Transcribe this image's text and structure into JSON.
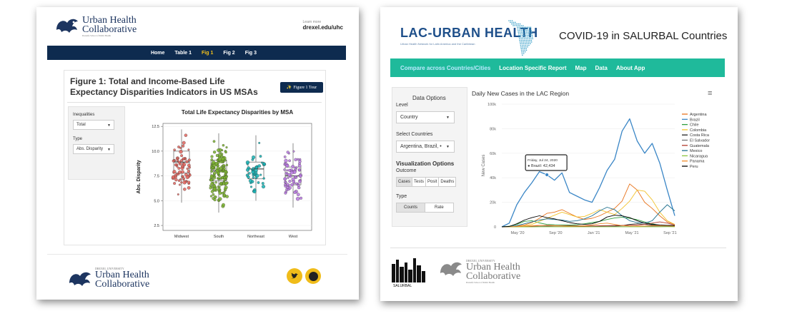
{
  "left": {
    "logo": {
      "line1": "Urban Health",
      "line2": "Collaborative",
      "tagline": "Dornsife School of Public Health"
    },
    "learn_more": "Learn more",
    "link": "drexel.edu/uhc",
    "nav": [
      "Home",
      "Table 1",
      "Fig 1",
      "Fig 2",
      "Fig 3"
    ],
    "nav_active": "Fig 1",
    "figure_title": "Figure 1: Total and Income-Based Life Expectancy Disparities Indicators in US MSAs",
    "tour_button": "Figure 1 Tour",
    "controls": {
      "inequalities_label": "Inequalities",
      "inequalities_value": "Total",
      "type_label": "Type",
      "type_value": "Abs. Disparity"
    },
    "footer_logo": {
      "small": "DREXEL UNIVERSITY",
      "line1": "Urban Health",
      "line2": "Collaborative"
    },
    "social": [
      "twitter-icon",
      "github-icon"
    ],
    "accent": "#0e2b4f",
    "highlight": "#f5c21b"
  },
  "right": {
    "logo_text": "LAC-URBAN HEALTH",
    "logo_sub": "Urban Health Network for Latin America and the Caribbean",
    "heading": "COVID-19 in SALURBAL Countries",
    "nav": [
      "Compare across Countries/Cities",
      "Location Specific Report",
      "Map",
      "Data",
      "About App"
    ],
    "nav_active": "Compare across Countries/Cities",
    "nav_color": "#1fba9b",
    "controls": {
      "data_options": "Data Options",
      "level_label": "Level",
      "level_value": "Country",
      "select_label": "Select Countries",
      "select_value": "Argentina, Brazil, •",
      "viz_options": "Visualization Options",
      "outcome_label": "Outcome",
      "outcome_buttons": [
        "Cases",
        "Tests",
        "Posit",
        "Deaths"
      ],
      "outcome_active": "Cases",
      "type_label": "Type",
      "type_buttons": [
        "Counts",
        "Rate"
      ],
      "type_active": "Counts"
    },
    "footer": {
      "salurbal": "SALURBAL",
      "small": "DREXEL UNIVERSITY",
      "line1": "Urban Health",
      "line2": "Collaborative",
      "tagline": "Dornsife School of Public Health"
    }
  },
  "chart_data": [
    {
      "type": "scatter",
      "title": "Total Life Expectancy Disparities by MSA",
      "xlabel": "",
      "ylabel": "Abs. Disparity",
      "categories": [
        "Midwest",
        "South",
        "Northeast",
        "West"
      ],
      "yticks": [
        "2.5",
        "5.0",
        "7.5",
        "10.0",
        "12.5"
      ],
      "ylim": [
        2,
        12.8
      ],
      "boxes": [
        {
          "category": "Midwest",
          "min": 4.8,
          "q1": 7.8,
          "median": 8.9,
          "q3": 10.0,
          "max": 12.2,
          "color": "#e0645d"
        },
        {
          "category": "South",
          "min": 3.8,
          "q1": 7.0,
          "median": 8.0,
          "q3": 9.1,
          "max": 11.8,
          "color": "#7bb32e"
        },
        {
          "category": "Northeast",
          "min": 5.0,
          "q1": 7.2,
          "median": 8.2,
          "q3": 8.9,
          "max": 11.6,
          "color": "#14b0b3"
        },
        {
          "category": "West",
          "min": 4.3,
          "q1": 6.6,
          "median": 7.5,
          "q3": 8.4,
          "max": 10.8,
          "color": "#b979e0"
        }
      ],
      "point_counts": [
        70,
        150,
        45,
        70
      ]
    },
    {
      "type": "line",
      "title": "Daily New Cases in the LAC Region",
      "xlabel": "",
      "ylabel": "New Cases",
      "xticks": [
        "May '20",
        "Sep '20",
        "Jan '21",
        "May '21",
        "Sep '21"
      ],
      "yticks": [
        "0",
        "20k",
        "40k",
        "60k",
        "80k",
        "100k"
      ],
      "ylim": [
        0,
        100000
      ],
      "tooltip": {
        "date": "Friday, Jul 24, 2020",
        "series": "Brazil",
        "value": "42,434"
      },
      "series": [
        {
          "name": "Argentina",
          "color": "#e8731c",
          "values": [
            0,
            200,
            600,
            1500,
            3500,
            7000,
            11000,
            12000,
            14000,
            11000,
            8000,
            6000,
            7000,
            9000,
            12000,
            15000,
            21000,
            35000,
            30000,
            20000,
            15000,
            9000,
            4000,
            2000
          ]
        },
        {
          "name": "Brazil",
          "color": "#3a86c6",
          "values": [
            0,
            3000,
            18000,
            28000,
            36000,
            45000,
            42434,
            38000,
            44000,
            28000,
            25000,
            22000,
            20000,
            32000,
            46000,
            55000,
            78000,
            88000,
            70000,
            60000,
            68000,
            52000,
            30000,
            9000
          ]
        },
        {
          "name": "Chile",
          "color": "#2f9e3f",
          "values": [
            0,
            500,
            2000,
            4500,
            5000,
            3200,
            2000,
            1700,
            1600,
            1500,
            1800,
            2500,
            3500,
            4500,
            6000,
            7200,
            7800,
            7000,
            5800,
            4000,
            2500,
            1200,
            700,
            500
          ]
        },
        {
          "name": "Colombia",
          "color": "#f2c22c",
          "values": [
            0,
            100,
            300,
            800,
            2000,
            4500,
            7000,
            9500,
            12000,
            10000,
            8000,
            8500,
            11000,
            14000,
            12000,
            10000,
            15000,
            21000,
            30000,
            29000,
            22000,
            12000,
            5000,
            2000
          ]
        },
        {
          "name": "Costa Rica",
          "color": "#222222",
          "values": [
            0,
            0,
            0,
            50,
            100,
            300,
            600,
            800,
            900,
            1000,
            900,
            800,
            700,
            600,
            500,
            500,
            1000,
            2000,
            2500,
            2000,
            1500,
            1300,
            1200,
            1000
          ]
        },
        {
          "name": "El Salvador",
          "color": "#777777",
          "values": [
            0,
            0,
            10,
            50,
            200,
            300,
            300,
            250,
            200,
            200,
            200,
            200,
            200,
            250,
            300,
            250,
            200,
            200,
            200,
            250,
            300,
            350,
            400,
            300
          ]
        },
        {
          "name": "Guatemala",
          "color": "#b33a2c",
          "values": [
            0,
            0,
            50,
            200,
            500,
            1000,
            1200,
            1000,
            800,
            700,
            600,
            600,
            700,
            900,
            1000,
            1100,
            1200,
            1300,
            1500,
            2000,
            3000,
            4000,
            3000,
            1500
          ]
        },
        {
          "name": "Mexico",
          "color": "#1d6f8c",
          "values": [
            0,
            200,
            1000,
            2500,
            4000,
            5500,
            6500,
            6000,
            5500,
            4500,
            5000,
            6500,
            9000,
            13000,
            16000,
            14000,
            9000,
            5000,
            3500,
            3000,
            5000,
            12000,
            18000,
            13000
          ]
        },
        {
          "name": "Nicaragua",
          "color": "#8cc63f",
          "values": [
            0,
            0,
            0,
            20,
            50,
            80,
            60,
            50,
            40,
            30,
            30,
            30,
            30,
            30,
            30,
            30,
            30,
            30,
            40,
            50,
            60,
            80,
            100,
            80
          ]
        },
        {
          "name": "Panama",
          "color": "#f08a2a",
          "values": [
            0,
            100,
            300,
            600,
            900,
            1200,
            1100,
            900,
            700,
            600,
            700,
            900,
            1500,
            2500,
            3000,
            2000,
            1000,
            700,
            600,
            700,
            900,
            1000,
            900,
            600
          ]
        },
        {
          "name": "Peru",
          "color": "#000000",
          "values": [
            0,
            300,
            2500,
            5500,
            7500,
            9000,
            7500,
            6500,
            5000,
            3500,
            2500,
            2000,
            2500,
            4500,
            8000,
            9500,
            9000,
            7500,
            5000,
            3000,
            2000,
            1500,
            1200,
            1000
          ]
        }
      ]
    }
  ]
}
